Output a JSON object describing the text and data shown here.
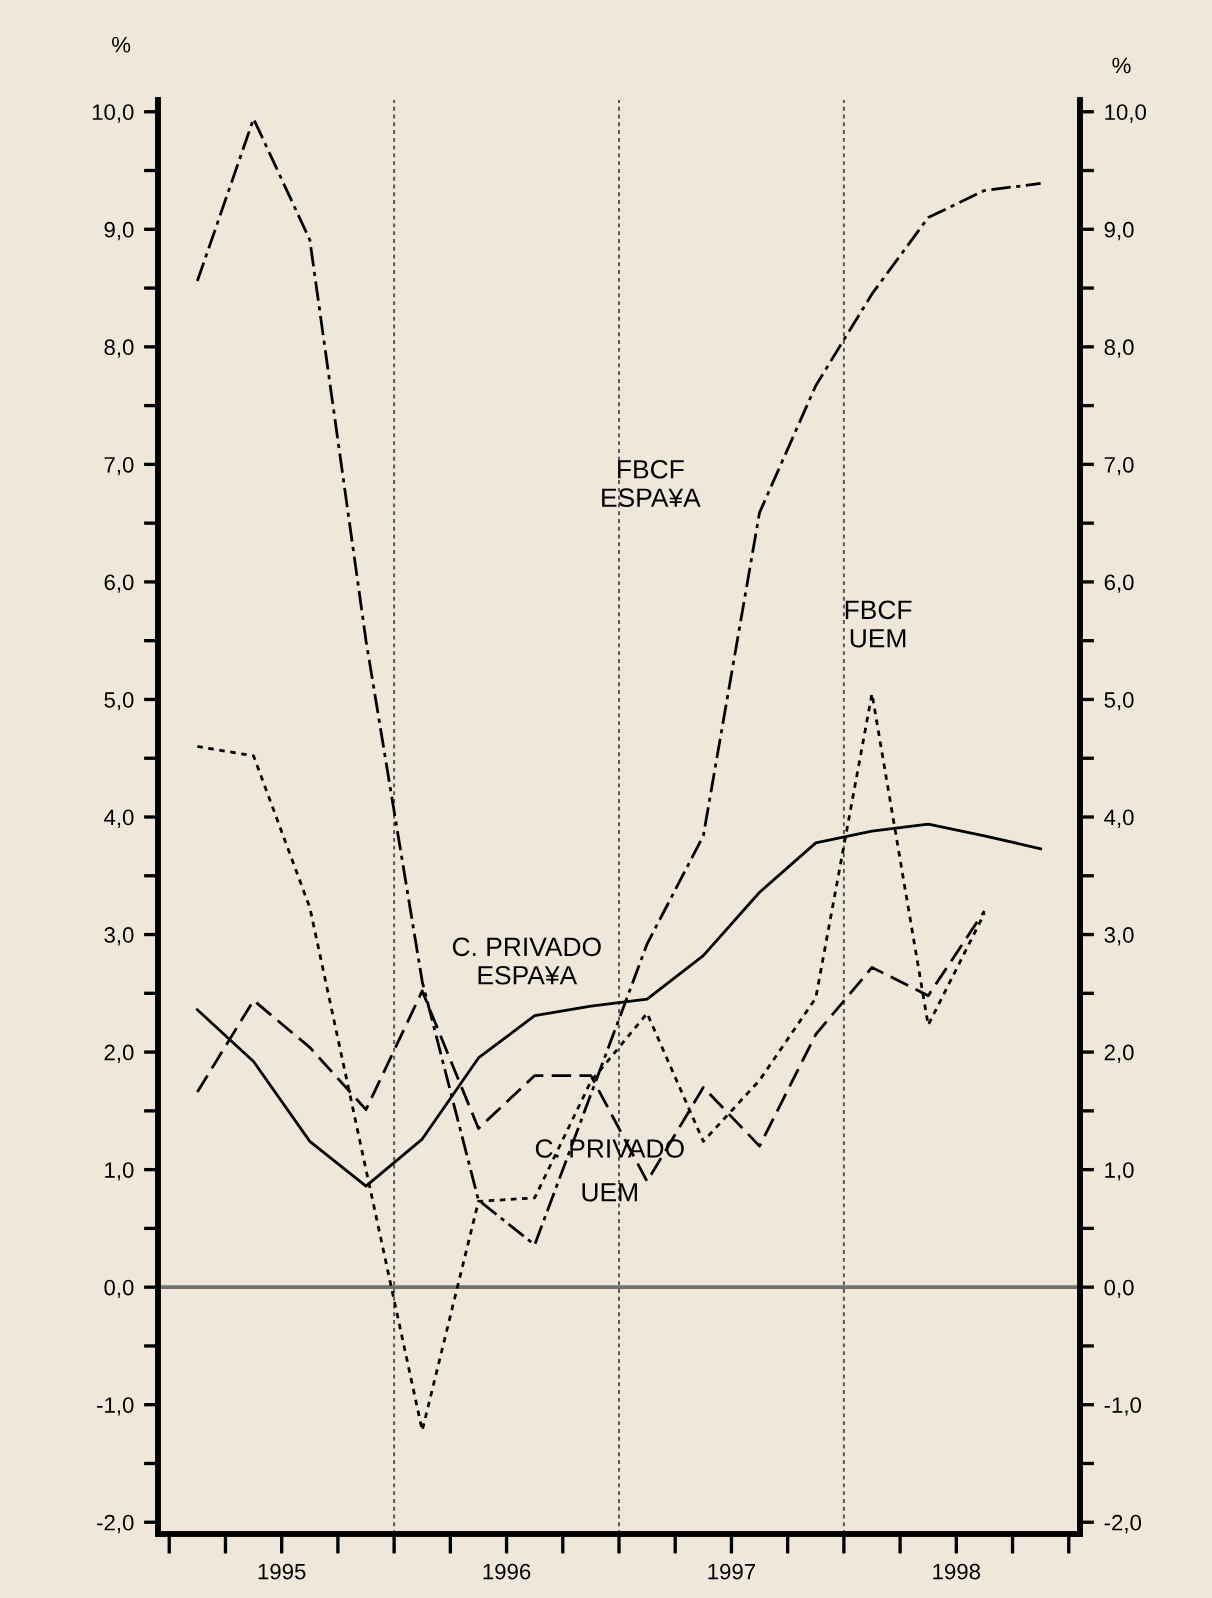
{
  "chart_data": {
    "type": "line",
    "x": [
      1995.125,
      1995.375,
      1995.625,
      1995.875,
      1996.125,
      1996.375,
      1996.625,
      1996.875,
      1997.125,
      1997.375,
      1997.625,
      1997.875,
      1998.125,
      1998.375,
      1998.625,
      1998.875
    ],
    "series": [
      {
        "name": "C. PRIVADO\nESPA¥A",
        "color": "#000000",
        "line_style": "solid",
        "values": [
          2.36,
          1.92,
          1.24,
          0.86,
          1.26,
          1.95,
          2.31,
          2.39,
          2.45,
          2.82,
          3.36,
          3.78,
          3.88,
          3.94,
          3.84,
          3.73
        ]
      },
      {
        "name": "C. PRIVADO\nUEM",
        "color": "#000000",
        "line_style": "dashed",
        "values": [
          1.66,
          2.44,
          2.04,
          1.51,
          2.52,
          1.35,
          1.8,
          1.8,
          0.9,
          1.7,
          1.2,
          2.15,
          2.72,
          2.48,
          3.2,
          null
        ]
      },
      {
        "name": "FBCF\nUEM",
        "color": "#000000",
        "line_style": "dotted",
        "values": [
          4.6,
          4.52,
          3.23,
          1.0,
          -1.22,
          0.73,
          0.76,
          1.75,
          2.33,
          1.24,
          1.76,
          2.46,
          5.05,
          2.23,
          3.18,
          null
        ]
      },
      {
        "name": "FBCF\nESPA¥A",
        "color": "#000000",
        "line_style": "dashdot",
        "values": [
          8.56,
          9.94,
          8.91,
          5.5,
          2.6,
          0.74,
          0.36,
          1.64,
          2.92,
          3.84,
          6.59,
          7.67,
          8.45,
          9.1,
          9.33,
          9.39
        ]
      }
    ],
    "ylabel": "%",
    "y2label": "%",
    "xlim": [
      1994.95,
      1999.05
    ],
    "xticks": [
      {
        "value": 1995.0,
        "label": null
      },
      {
        "value": 1995.25,
        "label": null
      },
      {
        "value": 1995.5,
        "label": "1995"
      },
      {
        "value": 1995.75,
        "label": null
      },
      {
        "value": 1996.0,
        "label": null
      },
      {
        "value": 1996.25,
        "label": null
      },
      {
        "value": 1996.5,
        "label": "1996"
      },
      {
        "value": 1996.75,
        "label": null
      },
      {
        "value": 1997.0,
        "label": null
      },
      {
        "value": 1997.25,
        "label": null
      },
      {
        "value": 1997.5,
        "label": "1997"
      },
      {
        "value": 1997.75,
        "label": null
      },
      {
        "value": 1998.0,
        "label": null
      },
      {
        "value": 1998.25,
        "label": null
      },
      {
        "value": 1998.5,
        "label": "1998"
      },
      {
        "value": 1998.75,
        "label": null
      },
      {
        "value": 1999.0,
        "label": null
      }
    ],
    "ylim": [
      -2.1,
      10.1
    ],
    "yticks": [
      {
        "value": -2,
        "label": "-2,0"
      },
      {
        "value": -1.5,
        "label": null
      },
      {
        "value": -1,
        "label": "-1,0"
      },
      {
        "value": -0.5,
        "label": null
      },
      {
        "value": 0,
        "label": "0,0"
      },
      {
        "value": 0.5,
        "label": null
      },
      {
        "value": 1,
        "label": "1,0"
      },
      {
        "value": 1.5,
        "label": null
      },
      {
        "value": 2,
        "label": "2,0"
      },
      {
        "value": 2.5,
        "label": null
      },
      {
        "value": 3,
        "label": "3,0"
      },
      {
        "value": 3.5,
        "label": null
      },
      {
        "value": 4,
        "label": "4,0"
      },
      {
        "value": 4.5,
        "label": null
      },
      {
        "value": 5,
        "label": "5,0"
      },
      {
        "value": 5.5,
        "label": null
      },
      {
        "value": 6,
        "label": "6,0"
      },
      {
        "value": 6.5,
        "label": null
      },
      {
        "value": 7,
        "label": "7,0"
      },
      {
        "value": 7.5,
        "label": null
      },
      {
        "value": 8,
        "label": "8,0"
      },
      {
        "value": 8.5,
        "label": null
      },
      {
        "value": 9,
        "label": "9,0"
      },
      {
        "value": 9.5,
        "label": null
      },
      {
        "value": 10,
        "label": "10,0"
      }
    ],
    "y2lim": [
      -2.1,
      10.1
    ],
    "y2ticks": [
      {
        "value": -2,
        "label": "-2,0"
      },
      {
        "value": -1.5,
        "label": null
      },
      {
        "value": -1,
        "label": "-1,0"
      },
      {
        "value": -0.5,
        "label": null
      },
      {
        "value": 0,
        "label": "0,0"
      },
      {
        "value": 0.5,
        "label": null
      },
      {
        "value": 1,
        "label": "1,0"
      },
      {
        "value": 1.5,
        "label": null
      },
      {
        "value": 2,
        "label": "2,0"
      },
      {
        "value": 2.5,
        "label": null
      },
      {
        "value": 3,
        "label": "3,0"
      },
      {
        "value": 3.5,
        "label": null
      },
      {
        "value": 4,
        "label": "4,0"
      },
      {
        "value": 4.5,
        "label": null
      },
      {
        "value": 5,
        "label": "5,0"
      },
      {
        "value": 5.5,
        "label": null
      },
      {
        "value": 6,
        "label": "6,0"
      },
      {
        "value": 6.5,
        "label": null
      },
      {
        "value": 7,
        "label": "7,0"
      },
      {
        "value": 7.5,
        "label": null
      },
      {
        "value": 8,
        "label": "8,0"
      },
      {
        "value": 8.5,
        "label": null
      },
      {
        "value": 9,
        "label": "9,0"
      },
      {
        "value": 9.5,
        "label": null
      },
      {
        "value": 10,
        "label": "10,0"
      }
    ],
    "ref_lines": [
      {
        "axis": "y",
        "value": 0,
        "color": "#707070",
        "line_style": "solid"
      },
      {
        "axis": "x",
        "value": 1996.0,
        "color": "#555555",
        "line_style": "dotted"
      },
      {
        "axis": "x",
        "value": 1997.0,
        "color": "#555555",
        "line_style": "dotted"
      },
      {
        "axis": "x",
        "value": 1998.0,
        "color": "#555555",
        "line_style": "dotted"
      }
    ],
    "grid": false,
    "legend": false,
    "marker": "none"
  }
}
